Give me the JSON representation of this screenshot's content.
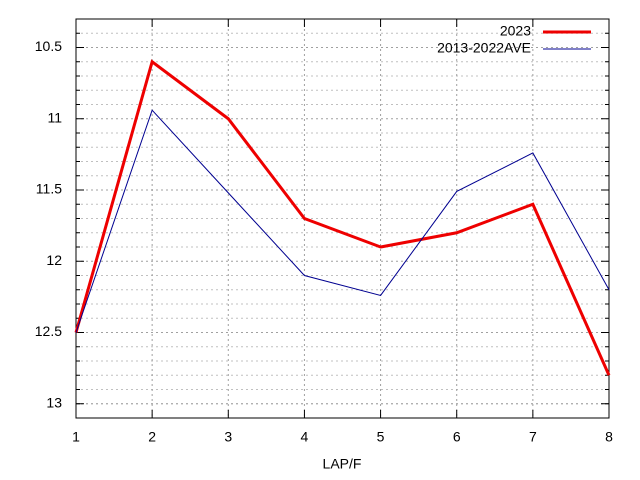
{
  "chart_data": {
    "type": "line",
    "x_label": "LAP/F",
    "x": [
      1,
      2,
      3,
      4,
      5,
      6,
      7,
      8
    ],
    "series": [
      {
        "name": "2023",
        "color": "#ee0000",
        "values": [
          12.5,
          10.6,
          11.0,
          11.7,
          11.9,
          11.8,
          11.6,
          12.8
        ]
      },
      {
        "name": "2013-2022AVE",
        "color": "#000090",
        "values": [
          12.5,
          10.94,
          11.52,
          12.1,
          12.24,
          11.51,
          11.24,
          12.2
        ]
      }
    ],
    "xlim": [
      1,
      8
    ],
    "xticks": [
      1,
      2,
      3,
      4,
      5,
      6,
      7,
      8
    ],
    "ylim": [
      13.1,
      10.3
    ],
    "yticks": [
      10.5,
      11,
      11.5,
      12,
      12.5,
      13
    ],
    "yminorticks": [
      10.4,
      10.6,
      10.7,
      10.8,
      10.9,
      11.1,
      11.2,
      11.3,
      11.4,
      11.6,
      11.7,
      11.8,
      11.9,
      12.1,
      12.2,
      12.3,
      12.4,
      12.6,
      12.7,
      12.8,
      12.9,
      13.0
    ],
    "grid": true,
    "legend": "top-right"
  }
}
